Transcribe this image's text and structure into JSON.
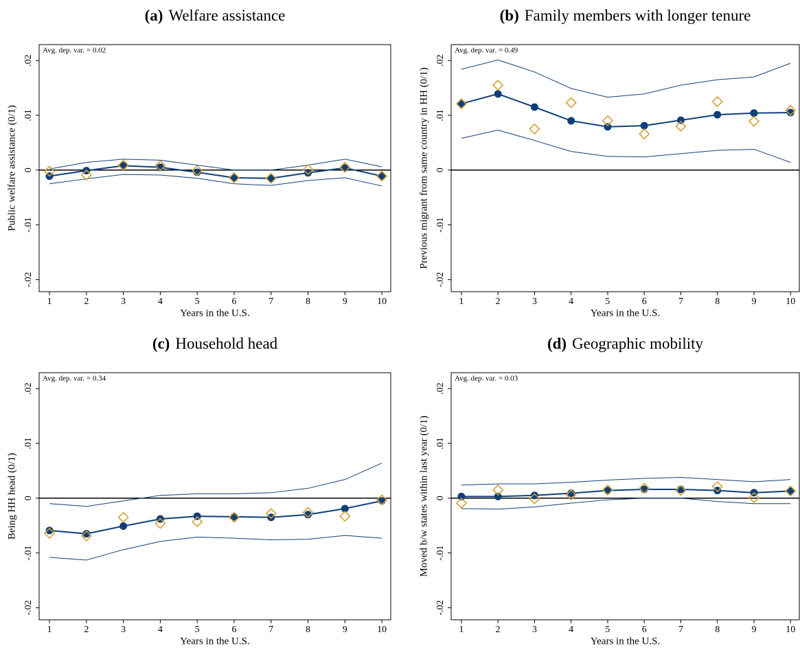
{
  "chart_data": [
    {
      "type": "line",
      "panel": "(a)",
      "title": "Welfare assistance",
      "annotation": "Avg. dep. var. = 0.02",
      "xlabel": "Years in the U.S.",
      "ylabel": "Public welfare assistance (0/1)",
      "x": [
        1,
        2,
        3,
        4,
        5,
        6,
        7,
        8,
        9,
        10
      ],
      "xlim": [
        0.72,
        10.24
      ],
      "xticks": [
        1,
        2,
        3,
        4,
        5,
        6,
        7,
        8,
        9,
        10
      ],
      "ylim": [
        -0.0222,
        0.0229
      ],
      "yticks": [
        {
          "value": -0.02,
          "label": "-.02"
        },
        {
          "value": -0.01,
          "label": "-.01"
        },
        0,
        {
          "value": 0.01,
          "label": ".01"
        },
        {
          "value": 0.02,
          "label": ".02"
        }
      ],
      "reference_line": 0,
      "series": [
        {
          "color": "#0e3f7a",
          "line": "thin",
          "marker": "none",
          "values": [
            0.0002,
            0.0014,
            0.002,
            0.0018,
            0.0009,
            0,
            0,
            0.0009,
            0.002,
            0.0006
          ]
        },
        {
          "color": "#0e3f7a",
          "line": "thin",
          "marker": "none",
          "values": [
            -0.0025,
            -0.0016,
            -0.0008,
            -0.0009,
            -0.0015,
            -0.0025,
            -0.0028,
            -0.0019,
            -0.0014,
            -0.0029
          ]
        },
        {
          "color": "#0e3f7a",
          "line": "thick",
          "marker": "circle",
          "values": [
            -0.0011,
            -0.0001,
            0.0008,
            0.0005,
            -0.0004,
            -0.0014,
            -0.0015,
            -0.0005,
            0.0004,
            -0.0011
          ]
        },
        {
          "color": "#d4a034",
          "line": "none",
          "marker": "diamond",
          "values": [
            -0.0002,
            -0.0009,
            0.0009,
            0.0008,
            -0.0001,
            -0.0014,
            -0.0015,
            0.0001,
            0.0005,
            -0.0011
          ]
        }
      ]
    },
    {
      "type": "line",
      "panel": "(b)",
      "title": "Family members with longer tenure",
      "annotation": "Avg. dep. var. = 0.49",
      "xlabel": "Years in the U.S.",
      "ylabel": "Previous migrant from same country  in HH (0/1)",
      "x": [
        1,
        2,
        3,
        4,
        5,
        6,
        7,
        8,
        9,
        10
      ],
      "xlim": [
        0.72,
        10.24
      ],
      "xticks": [
        1,
        2,
        3,
        4,
        5,
        6,
        7,
        8,
        9,
        10
      ],
      "ylim": [
        -0.0222,
        0.0229
      ],
      "yticks": [
        {
          "value": -0.02,
          "label": "-.02"
        },
        {
          "value": -0.01,
          "label": "-.01"
        },
        0,
        {
          "value": 0.01,
          "label": ".01"
        },
        {
          "value": 0.02,
          "label": ".02"
        }
      ],
      "reference_line": 0,
      "series": [
        {
          "color": "#0e3f7a",
          "line": "thin",
          "marker": "none",
          "values": [
            0.0184,
            0.0201,
            0.0179,
            0.0149,
            0.0133,
            0.0139,
            0.0155,
            0.0165,
            0.017,
            0.0195
          ]
        },
        {
          "color": "#0e3f7a",
          "line": "thin",
          "marker": "none",
          "values": [
            0.0058,
            0.0073,
            0.0054,
            0.0034,
            0.0025,
            0.0024,
            0.003,
            0.0036,
            0.0038,
            0.0014
          ]
        },
        {
          "color": "#0e3f7a",
          "line": "thick",
          "marker": "circle",
          "values": [
            0.0121,
            0.0139,
            0.0115,
            0.009,
            0.0079,
            0.0081,
            0.0091,
            0.0101,
            0.0104,
            0.0105
          ]
        },
        {
          "color": "#d4a034",
          "line": "none",
          "marker": "diamond",
          "values": [
            0.0121,
            0.0155,
            0.0075,
            0.0123,
            0.009,
            0.0066,
            0.008,
            0.0125,
            0.0089,
            0.0109
          ]
        }
      ]
    },
    {
      "type": "line",
      "panel": "(c)",
      "title": "Household head",
      "annotation": "Avg. dep. var. = 0.34",
      "xlabel": "Years in the U.S.",
      "ylabel": "Being HH head (0/1)",
      "x": [
        1,
        2,
        3,
        4,
        5,
        6,
        7,
        8,
        9,
        10
      ],
      "xlim": [
        0.72,
        10.24
      ],
      "xticks": [
        1,
        2,
        3,
        4,
        5,
        6,
        7,
        8,
        9,
        10
      ],
      "ylim": [
        -0.0222,
        0.0229
      ],
      "yticks": [
        {
          "value": -0.02,
          "label": "-.02"
        },
        {
          "value": -0.01,
          "label": "-.01"
        },
        0,
        {
          "value": 0.01,
          "label": ".01"
        },
        {
          "value": 0.02,
          "label": ".02"
        }
      ],
      "reference_line": 0,
      "series": [
        {
          "color": "#0e3f7a",
          "line": "thin",
          "marker": "none",
          "values": [
            -0.001,
            -0.0015,
            -0.0005,
            0.0005,
            0.0008,
            0.0008,
            0.001,
            0.0018,
            0.0034,
            0.0064
          ]
        },
        {
          "color": "#0e3f7a",
          "line": "thin",
          "marker": "none",
          "values": [
            -0.0108,
            -0.0113,
            -0.0094,
            -0.0079,
            -0.0071,
            -0.0073,
            -0.0076,
            -0.0075,
            -0.0068,
            -0.0073
          ]
        },
        {
          "color": "#0e3f7a",
          "line": "thick",
          "marker": "circle",
          "values": [
            -0.0059,
            -0.0065,
            -0.0051,
            -0.0038,
            -0.0033,
            -0.0034,
            -0.0035,
            -0.003,
            -0.0019,
            -0.0005
          ]
        },
        {
          "color": "#d4a034",
          "line": "none",
          "marker": "diamond",
          "values": [
            -0.0064,
            -0.0069,
            -0.0035,
            -0.0046,
            -0.0043,
            -0.0035,
            -0.0028,
            -0.0026,
            -0.0033,
            -0.0003
          ]
        }
      ]
    },
    {
      "type": "line",
      "panel": "(d)",
      "title": "Geographic mobility",
      "annotation": "Avg. dep. var. = 0.03",
      "xlabel": "Years in the U.S.",
      "ylabel": "Moved b/w states within last year (0/1)",
      "x": [
        1,
        2,
        3,
        4,
        5,
        6,
        7,
        8,
        9,
        10
      ],
      "xlim": [
        0.72,
        10.24
      ],
      "xticks": [
        1,
        2,
        3,
        4,
        5,
        6,
        7,
        8,
        9,
        10
      ],
      "ylim": [
        -0.0222,
        0.0229
      ],
      "yticks": [
        {
          "value": -0.02,
          "label": "-.02"
        },
        {
          "value": -0.01,
          "label": "-.01"
        },
        0,
        {
          "value": 0.01,
          "label": ".01"
        },
        {
          "value": 0.02,
          "label": ".02"
        }
      ],
      "reference_line": 0,
      "series": [
        {
          "color": "#0e3f7a",
          "line": "thin",
          "marker": "none",
          "values": [
            0.0024,
            0.0026,
            0.0026,
            0.0029,
            0.0033,
            0.0036,
            0.0038,
            0.0034,
            0.003,
            0.0034
          ]
        },
        {
          "color": "#0e3f7a",
          "line": "thin",
          "marker": "none",
          "values": [
            -0.0019,
            -0.002,
            -0.0016,
            -0.0009,
            -0.0003,
            0,
            0,
            -0.0006,
            -0.001,
            -0.001
          ]
        },
        {
          "color": "#0e3f7a",
          "line": "thick",
          "marker": "circle",
          "values": [
            0.0003,
            0.0003,
            0.0005,
            0.0009,
            0.0014,
            0.0016,
            0.0016,
            0.0014,
            0.001,
            0.0013
          ]
        },
        {
          "color": "#d4a034",
          "line": "none",
          "marker": "diamond",
          "values": [
            -0.0009,
            0.0015,
            -0.0001,
            0.0006,
            0.0015,
            0.0018,
            0.0014,
            0.0021,
            0.0001,
            0.0013
          ]
        }
      ]
    }
  ]
}
